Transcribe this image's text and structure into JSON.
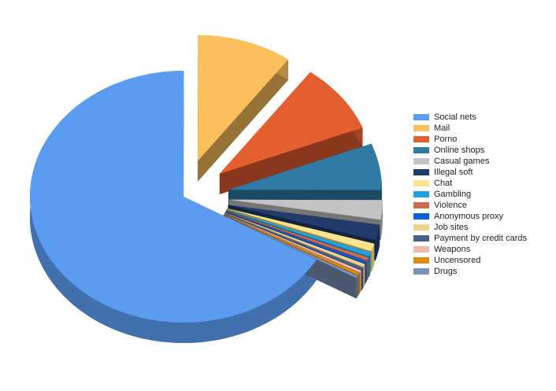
{
  "chart_data": {
    "type": "pie",
    "categories": [
      "Social nets",
      "Mail",
      "Porno",
      "Online shops",
      "Casual games",
      "Illegal soft",
      "Chat",
      "Gambling",
      "Violence",
      "Anonymous proxy",
      "Job sites",
      "Payment by credit cards",
      "Weapons",
      "Uncensored",
      "Drugs"
    ],
    "values": [
      66.7,
      10,
      9,
      6,
      2.5,
      2,
      1,
      0.5,
      0.4,
      0.3,
      0.4,
      0.3,
      0.3,
      0.3,
      0.3
    ],
    "colors": [
      "#5b9cf0",
      "#fbbf5c",
      "#e45e30",
      "#2f7ba5",
      "#c4c4c4",
      "#213c6a",
      "#fce48c",
      "#1ca3e0",
      "#cf6a52",
      "#0b5fd8",
      "#f1d38e",
      "#4b6088",
      "#f1baa9",
      "#e08a12",
      "#7b92ba"
    ],
    "legend": "right"
  }
}
